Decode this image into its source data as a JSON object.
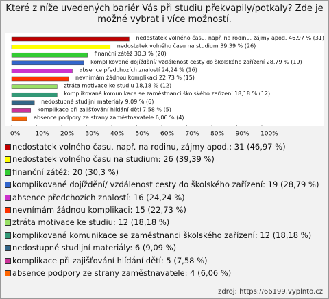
{
  "chart_data": {
    "type": "hbar",
    "title": "Které z níže uvedených bariér Vás při studiu překvapily/potkaly? Zde je možné vybrat i více možností.",
    "categories": [
      "nedostatek volného času, např. na rodinu, zájmy apod.",
      "nedostatek volného času na studium",
      "finanční zátěž",
      "komplikované dojíždění/ vzdálenost cesty do školského zařízení",
      "absence předchozích znalostí",
      "nevnímám žádnou komplikaci",
      "ztráta motivace ke studiu",
      "komplikovaná komunikace se zaměstnanci školského zařízení",
      "nedostupné studijní materiály",
      "komplikace při zajišťování hlídání dětí",
      "absence podpory ze strany zaměstnavatele"
    ],
    "values": [
      46.97,
      39.39,
      30.3,
      28.79,
      24.24,
      22.73,
      18.18,
      18.18,
      9.09,
      7.58,
      6.06
    ],
    "counts": [
      31,
      26,
      20,
      19,
      16,
      15,
      12,
      12,
      6,
      5,
      4
    ],
    "value_labels": [
      "46,97 % (31)",
      "39,39 % (26)",
      "30,3 % (20)",
      "28,79 % (19)",
      "24,24 % (16)",
      "22,73 % (15)",
      "18,18 % (12)",
      "18,18 % (12)",
      "9,09 % (6)",
      "7,58 % (5)",
      "6,06 % (4)"
    ],
    "legend_labels": [
      "nedostatek volného času, např. na rodinu, zájmy apod.: 31 (46,97 %)",
      "nedostatek volného času na studium: 26 (39,39 %)",
      "finanční zátěž: 20 (30,3 %)",
      "komplikované dojíždění/ vzdálenost cesty do školského zařízení: 19 (28,79 %)",
      "absence předchozích znalostí: 16 (24,24 %)",
      "nevnímám žádnou komplikaci: 15 (22,73 %)",
      "ztráta motivace ke studiu: 12 (18,18 %)",
      "komplikovaná komunikace se zaměstnanci školského zařízení: 12 (18,18 %)",
      "nedostupné studijní materiály: 6 (9,09 %)",
      "komplikace při zajišťování hlídání dětí: 5 (7,58 %)",
      "absence podpory ze strany zaměstnavatele: 4 (6,06 %)"
    ],
    "colors": [
      "#c00000",
      "#ffff00",
      "#33cc33",
      "#3366cc",
      "#cc33cc",
      "#ff3300",
      "#99e066",
      "#339977",
      "#336688",
      "#cc3399",
      "#ff6600"
    ],
    "xlim": [
      0,
      100
    ],
    "xticks": [
      {
        "value": 0,
        "label": "0%"
      },
      {
        "value": 10,
        "label": "10%"
      },
      {
        "value": 20,
        "label": "20%"
      },
      {
        "value": 30,
        "label": "30%"
      },
      {
        "value": 40,
        "label": "40%"
      },
      {
        "value": 50,
        "label": "50%"
      },
      {
        "value": 60,
        "label": "60%"
      },
      {
        "value": 70,
        "label": "70%"
      },
      {
        "value": 80,
        "label": "80%"
      },
      {
        "value": 90,
        "label": "90%"
      },
      {
        "value": 100,
        "label": "100%"
      }
    ],
    "source": "zdroj: https://66199.vyplnto.cz"
  }
}
